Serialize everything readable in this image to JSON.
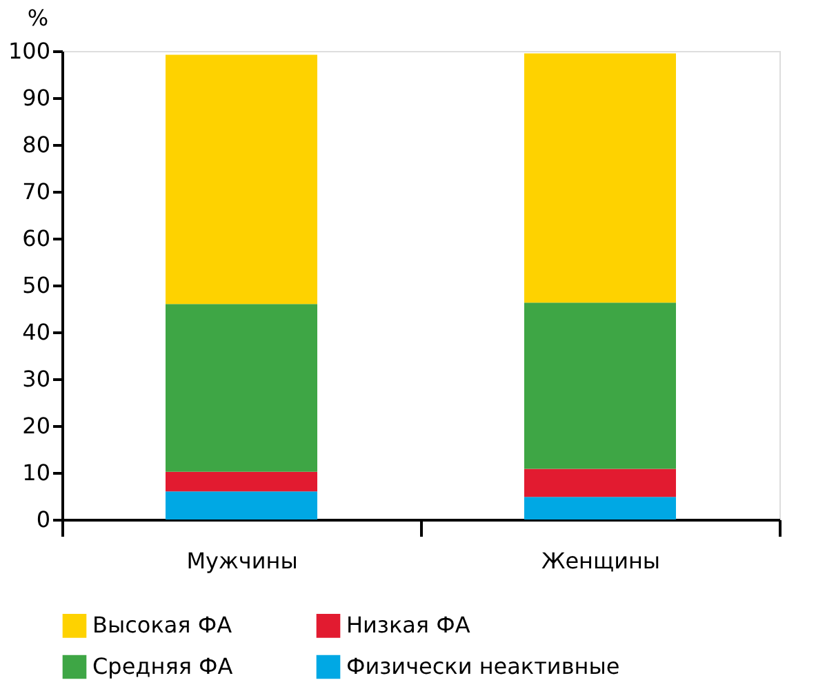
{
  "chart_data": {
    "type": "bar",
    "stacked": true,
    "ylabel": "%",
    "categories": [
      "Мужчины",
      "Женщины"
    ],
    "series": [
      {
        "name": "Физически неактивные",
        "color": "#00a8e4",
        "values": [
          6.0,
          4.8
        ]
      },
      {
        "name": "Низкая ФА",
        "color": "#e21b30",
        "values": [
          4.2,
          6.0
        ]
      },
      {
        "name": "Средняя ФА",
        "color": "#3ea645",
        "values": [
          35.8,
          35.5
        ]
      },
      {
        "name": "Высокая ФА",
        "color": "#fed200",
        "values": [
          53.2,
          53.2
        ]
      }
    ],
    "ylim": [
      0,
      100
    ],
    "yticks": [
      0,
      10,
      20,
      30,
      40,
      50,
      60,
      70,
      80,
      90,
      100
    ],
    "grid": false,
    "legend": "bottom"
  }
}
